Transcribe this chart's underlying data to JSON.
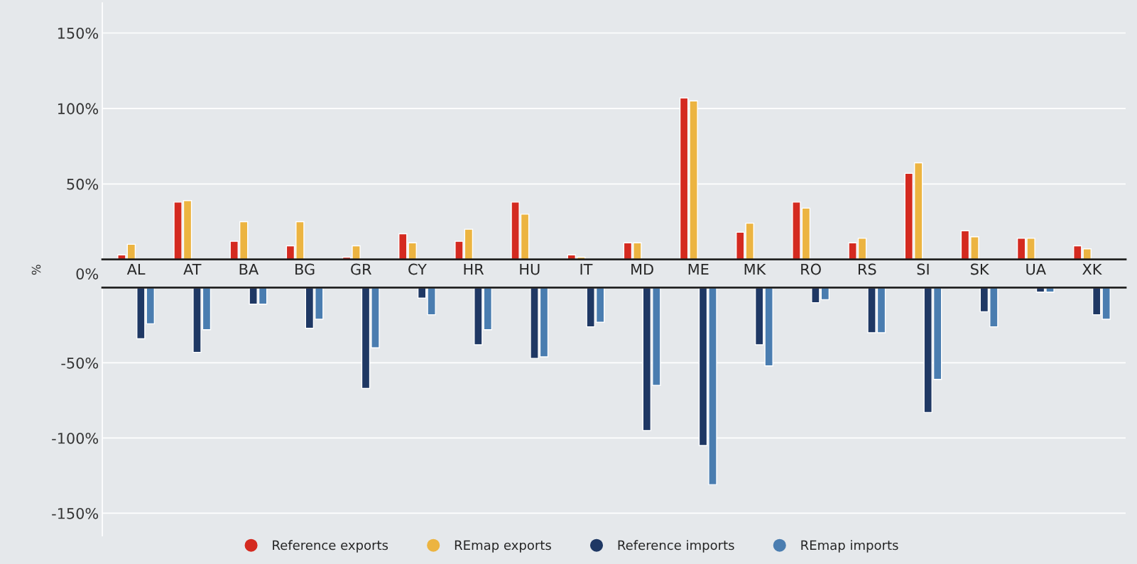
{
  "chart_data": [
    {
      "type": "bar",
      "ylabel": "%",
      "categories": [
        "AL",
        "AT",
        "BA",
        "BG",
        "GR",
        "CY",
        "HR",
        "HU",
        "IT",
        "MD",
        "ME",
        "MK",
        "RO",
        "RS",
        "SI",
        "SK",
        "UA",
        "XK"
      ],
      "series": [
        {
          "name": "Reference exports",
          "color": "#d42a20",
          "values": [
            3,
            38,
            12,
            9,
            1.5,
            17,
            12,
            38,
            3,
            11,
            107,
            18,
            38,
            11,
            57,
            19,
            14,
            9
          ]
        },
        {
          "name": "REmap exports",
          "color": "#ecb441",
          "values": [
            10,
            39,
            25,
            25,
            9,
            11,
            20,
            30,
            1.5,
            11,
            105,
            24,
            34,
            14,
            64,
            15,
            14,
            7
          ]
        }
      ],
      "ylim": [
        0,
        170
      ],
      "yticks": [
        {
          "value": 0,
          "label": "0%"
        },
        {
          "value": 50,
          "label": "50%"
        },
        {
          "value": 100,
          "label": "100%"
        },
        {
          "value": 150,
          "label": "150%"
        }
      ],
      "grid": "y",
      "legend": "bottom"
    },
    {
      "type": "bar",
      "series": [
        {
          "name": "Reference imports",
          "color": "#1f3864",
          "values": [
            -34,
            -43,
            -11,
            -27,
            -67,
            -7,
            -38,
            -47,
            -26,
            -95,
            -105,
            -38,
            -10,
            -30,
            -83,
            -16,
            -3,
            -18
          ]
        },
        {
          "name": "REmap imports",
          "color": "#4a7db0",
          "values": [
            -24,
            -28,
            -11,
            -21,
            -40,
            -18,
            -28,
            -46,
            -23,
            -65,
            -131,
            -52,
            -8,
            -30,
            -61,
            -26,
            -3,
            -21
          ]
        }
      ],
      "ylim": [
        -165,
        0
      ],
      "yticks": [
        {
          "value": -50,
          "label": "-50%"
        },
        {
          "value": -100,
          "label": "-100%"
        },
        {
          "value": -150,
          "label": "-150%"
        }
      ],
      "grid": "y",
      "legend": "bottom",
      "tick_labels": "y"
    }
  ]
}
